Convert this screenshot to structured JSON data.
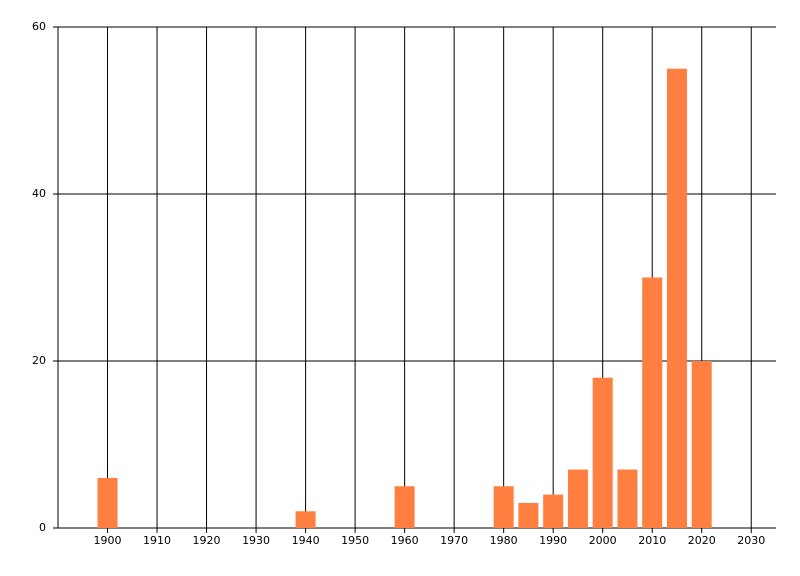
{
  "chart_data": {
    "type": "bar",
    "x": [
      1900,
      1940,
      1960,
      1980,
      1985,
      1990,
      1995,
      2000,
      2005,
      2010,
      2015,
      2020
    ],
    "values": [
      6,
      2,
      5,
      5,
      3,
      4,
      7,
      18,
      7,
      30,
      55,
      20
    ],
    "color": "#ff7f40",
    "xlim": [
      1890,
      2035
    ],
    "xticks": [
      1900,
      1910,
      1920,
      1930,
      1940,
      1950,
      1960,
      1970,
      1980,
      1990,
      2000,
      2010,
      2020,
      2030
    ],
    "ylim": [
      0,
      60
    ],
    "yticks": [
      0,
      20,
      40,
      60
    ],
    "grid": true
  }
}
